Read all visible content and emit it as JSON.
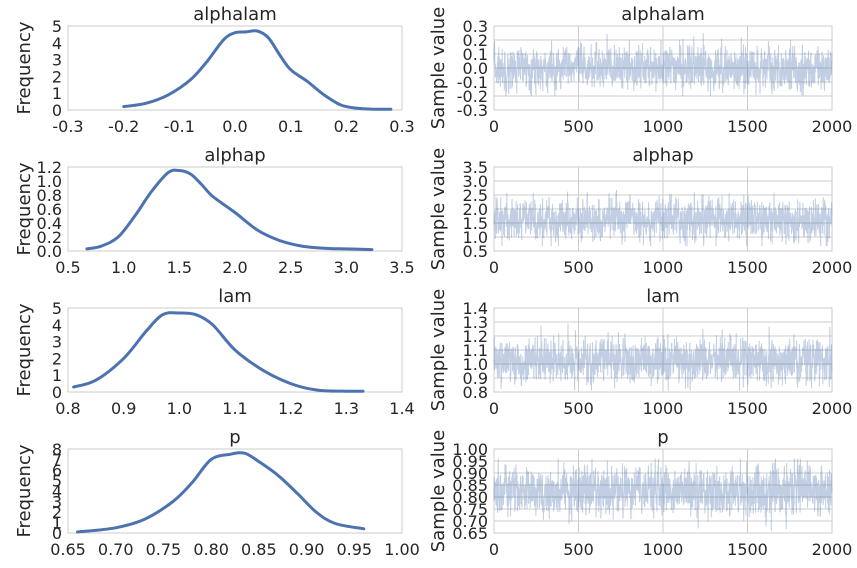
{
  "figure": {
    "colors": {
      "kde_line": "#4c72b0",
      "trace_fill": "#4c72b0",
      "grid": "#cccccc",
      "text": "#262626"
    }
  },
  "chart_data": [
    {
      "type": "line",
      "title": "alphalam",
      "xlabel": "",
      "ylabel": "Frequency",
      "xlim": [
        -0.3,
        0.3
      ],
      "ylim": [
        0,
        5
      ],
      "xticks": [
        -0.3,
        -0.2,
        -0.1,
        0.0,
        0.1,
        0.2,
        0.3
      ],
      "xtick_labels": [
        "-0.3",
        "-0.2",
        "-0.1",
        "0.0",
        "0.1",
        "0.2",
        "0.3"
      ],
      "yticks": [
        0,
        1,
        2,
        3,
        4,
        5
      ],
      "ytick_labels": [
        "0",
        "1",
        "2",
        "3",
        "4",
        "5"
      ],
      "grid": false,
      "x": [
        -0.2,
        -0.16,
        -0.12,
        -0.08,
        -0.05,
        -0.02,
        0.0,
        0.02,
        0.04,
        0.06,
        0.08,
        0.1,
        0.13,
        0.16,
        0.19,
        0.22,
        0.25,
        0.28
      ],
      "y": [
        0.2,
        0.4,
        0.9,
        1.8,
        2.9,
        4.2,
        4.6,
        4.65,
        4.7,
        4.3,
        3.3,
        2.4,
        1.7,
        0.9,
        0.3,
        0.1,
        0.05,
        0.05
      ]
    },
    {
      "type": "area",
      "title": "alphalam",
      "xlabel": "",
      "ylabel": "Sample value",
      "xlim": [
        0,
        2000
      ],
      "ylim": [
        -0.3,
        0.3
      ],
      "xticks": [
        0,
        500,
        1000,
        1500,
        2000
      ],
      "xtick_labels": [
        "0",
        "500",
        "1000",
        "1500",
        "2000"
      ],
      "yticks": [
        -0.3,
        -0.2,
        -0.1,
        0.0,
        0.1,
        0.2,
        0.3
      ],
      "ytick_labels": [
        "-0.3",
        "-0.2",
        "-0.1",
        "0.0",
        "0.1",
        "0.2",
        "0.3"
      ],
      "grid": true,
      "n_samples": 2000,
      "mean": 0.0,
      "sd": 0.075,
      "min": -0.2,
      "max": 0.29
    },
    {
      "type": "line",
      "title": "alphap",
      "xlabel": "",
      "ylabel": "Frequency",
      "xlim": [
        0.5,
        3.5
      ],
      "ylim": [
        0,
        1.2
      ],
      "xticks": [
        0.5,
        1.0,
        1.5,
        2.0,
        2.5,
        3.0,
        3.5
      ],
      "xtick_labels": [
        "0.5",
        "1.0",
        "1.5",
        "2.0",
        "2.5",
        "3.0",
        "3.5"
      ],
      "yticks": [
        0,
        0.2,
        0.4,
        0.6,
        0.8,
        1.0,
        1.2
      ],
      "ytick_labels": [
        "0.0",
        "0.2",
        "0.4",
        "0.6",
        "0.8",
        "1.0",
        "1.2"
      ],
      "grid": false,
      "x": [
        0.67,
        0.8,
        0.95,
        1.1,
        1.25,
        1.4,
        1.5,
        1.6,
        1.7,
        1.8,
        2.0,
        2.2,
        2.4,
        2.6,
        2.8,
        3.0,
        3.23
      ],
      "y": [
        0.03,
        0.07,
        0.2,
        0.5,
        0.85,
        1.12,
        1.15,
        1.1,
        0.95,
        0.78,
        0.55,
        0.3,
        0.15,
        0.07,
        0.04,
        0.03,
        0.02
      ]
    },
    {
      "type": "area",
      "title": "alphap",
      "xlabel": "",
      "ylabel": "Sample value",
      "xlim": [
        0,
        2000
      ],
      "ylim": [
        0.5,
        3.5
      ],
      "xticks": [
        0,
        500,
        1000,
        1500,
        2000
      ],
      "xtick_labels": [
        "0",
        "500",
        "1000",
        "1500",
        "2000"
      ],
      "yticks": [
        0.5,
        1.0,
        1.5,
        2.0,
        2.5,
        3.0,
        3.5
      ],
      "ytick_labels": [
        "0.5",
        "1.0",
        "1.5",
        "2.0",
        "2.5",
        "3.0",
        "3.5"
      ],
      "grid": true,
      "n_samples": 2000,
      "mean": 1.62,
      "sd": 0.38,
      "min": 0.67,
      "max": 3.23
    },
    {
      "type": "line",
      "title": "lam",
      "xlabel": "",
      "ylabel": "Frequency",
      "xlim": [
        0.8,
        1.4
      ],
      "ylim": [
        0,
        5
      ],
      "xticks": [
        0.8,
        0.9,
        1.0,
        1.1,
        1.2,
        1.3,
        1.4
      ],
      "xtick_labels": [
        "0.8",
        "0.9",
        "1.0",
        "1.1",
        "1.2",
        "1.3",
        "1.4"
      ],
      "yticks": [
        0,
        1,
        2,
        3,
        4,
        5
      ],
      "ytick_labels": [
        "0",
        "1",
        "2",
        "3",
        "4",
        "5"
      ],
      "grid": false,
      "x": [
        0.81,
        0.85,
        0.9,
        0.94,
        0.97,
        1.0,
        1.03,
        1.06,
        1.1,
        1.15,
        1.2,
        1.25,
        1.3,
        1.33
      ],
      "y": [
        0.3,
        0.7,
        2.0,
        3.6,
        4.6,
        4.7,
        4.6,
        4.0,
        2.5,
        1.3,
        0.5,
        0.1,
        0.05,
        0.05
      ]
    },
    {
      "type": "area",
      "title": "lam",
      "xlabel": "",
      "ylabel": "Sample value",
      "xlim": [
        0,
        2000
      ],
      "ylim": [
        0.8,
        1.4
      ],
      "xticks": [
        0,
        500,
        1000,
        1500,
        2000
      ],
      "xtick_labels": [
        "0",
        "500",
        "1000",
        "1500",
        "2000"
      ],
      "yticks": [
        0.8,
        0.9,
        1.0,
        1.1,
        1.2,
        1.3,
        1.4
      ],
      "ytick_labels": [
        "0.8",
        "0.9",
        "1.0",
        "1.1",
        "1.2",
        "1.3",
        "1.4"
      ],
      "grid": true,
      "n_samples": 2000,
      "mean": 1.02,
      "sd": 0.08,
      "min": 0.81,
      "max": 1.33
    },
    {
      "type": "line",
      "title": "p",
      "xlabel": "",
      "ylabel": "Frequency",
      "xlim": [
        0.65,
        1.0
      ],
      "ylim": [
        0,
        8
      ],
      "xticks": [
        0.65,
        0.7,
        0.75,
        0.8,
        0.85,
        0.9,
        0.95,
        1.0
      ],
      "xtick_labels": [
        "0.65",
        "0.70",
        "0.75",
        "0.80",
        "0.85",
        "0.90",
        "0.95",
        "1.00"
      ],
      "yticks": [
        0,
        1,
        2,
        3,
        4,
        5,
        6,
        7,
        8
      ],
      "ytick_labels": [
        "0",
        "1",
        "2",
        "3",
        "4",
        "5",
        "6",
        "7",
        "8"
      ],
      "grid": false,
      "x": [
        0.66,
        0.7,
        0.73,
        0.76,
        0.78,
        0.8,
        0.82,
        0.835,
        0.85,
        0.87,
        0.89,
        0.91,
        0.93,
        0.96
      ],
      "y": [
        0.1,
        0.5,
        1.3,
        3.0,
        4.8,
        7.0,
        7.5,
        7.6,
        6.8,
        5.5,
        3.8,
        2.0,
        0.9,
        0.4
      ]
    },
    {
      "type": "area",
      "title": "p",
      "xlabel": "",
      "ylabel": "Sample value",
      "xlim": [
        0,
        2000
      ],
      "ylim": [
        0.65,
        1.0
      ],
      "xticks": [
        0,
        500,
        1000,
        1500,
        2000
      ],
      "xtick_labels": [
        "0",
        "500",
        "1000",
        "1500",
        "2000"
      ],
      "yticks": [
        0.65,
        0.7,
        0.75,
        0.8,
        0.85,
        0.9,
        0.95,
        1.0
      ],
      "ytick_labels": [
        "0.65",
        "0.70",
        "0.75",
        "0.80",
        "0.85",
        "0.90",
        "0.95",
        "1.00"
      ],
      "grid": true,
      "n_samples": 2000,
      "mean": 0.825,
      "sd": 0.05,
      "min": 0.66,
      "max": 0.96
    }
  ]
}
